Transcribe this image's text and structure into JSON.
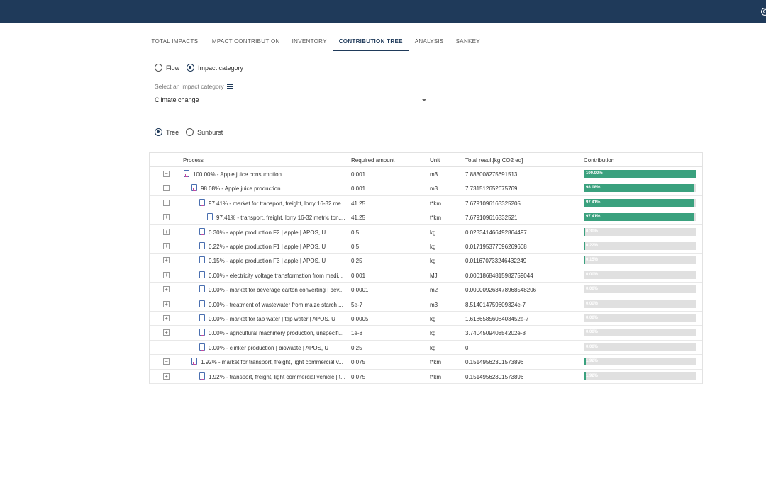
{
  "tabs": [
    "TOTAL IMPACTS",
    "IMPACT CONTRIBUTION",
    "INVENTORY",
    "CONTRIBUTION TREE",
    "ANALYSIS",
    "SANKEY"
  ],
  "active_tab": "CONTRIBUTION TREE",
  "mode": {
    "flow_label": "Flow",
    "impact_label": "Impact category",
    "selected": "Impact category"
  },
  "impact_select": {
    "label": "Select an impact category",
    "value": "Climate change"
  },
  "view": {
    "tree_label": "Tree",
    "sunburst_label": "Sunburst",
    "selected": "Tree"
  },
  "columns": [
    "Process",
    "Required amount",
    "Unit",
    "Total result[kg CO2 eq]",
    "Contribution"
  ],
  "rows": [
    {
      "toggle": "−",
      "level": 0,
      "process": "100.00% - Apple juice consumption",
      "amount": "0.001",
      "unit": "m3",
      "result": "7.883008275691513",
      "contrib": 100.0,
      "contrib_label": "100.00%"
    },
    {
      "toggle": "−",
      "level": 1,
      "process": "98.08% - Apple juice production",
      "amount": "0.001",
      "unit": "m3",
      "result": "7.731512652675769",
      "contrib": 98.08,
      "contrib_label": "98.08%"
    },
    {
      "toggle": "−",
      "level": 2,
      "process": "97.41% - market for transport, freight, lorry 16-32 me...",
      "amount": "41.25",
      "unit": "t*km",
      "result": "7.6791096163325205",
      "contrib": 97.41,
      "contrib_label": "97.41%"
    },
    {
      "toggle": "+",
      "level": 3,
      "process": "97.41% - transport, freight, lorry 16-32 metric ton,...",
      "amount": "41.25",
      "unit": "t*km",
      "result": "7.679109616332521",
      "contrib": 97.41,
      "contrib_label": "97.41%"
    },
    {
      "toggle": "+",
      "level": 2,
      "process": "0.30% - apple production F2 | apple | APOS, U",
      "amount": "0.5",
      "unit": "kg",
      "result": "0.023341466492864497",
      "contrib": 0.3,
      "contrib_label": "0.30%"
    },
    {
      "toggle": "+",
      "level": 2,
      "process": "0.22% - apple production F1 | apple | APOS, U",
      "amount": "0.5",
      "unit": "kg",
      "result": "0.017195377096269608",
      "contrib": 0.22,
      "contrib_label": "0.22%"
    },
    {
      "toggle": "+",
      "level": 2,
      "process": "0.15% - apple production F3 | apple | APOS, U",
      "amount": "0.25",
      "unit": "kg",
      "result": "0.011670733246432249",
      "contrib": 0.15,
      "contrib_label": "0.15%"
    },
    {
      "toggle": "+",
      "level": 2,
      "process": "0.00% - electricity voltage transformation from medi...",
      "amount": "0.001",
      "unit": "MJ",
      "result": "0.00018684815982759044",
      "contrib": 0.0,
      "contrib_label": "0.00%"
    },
    {
      "toggle": "+",
      "level": 2,
      "process": "0.00% - market for beverage carton converting | bev...",
      "amount": "0.0001",
      "unit": "m2",
      "result": "0.000009263478968548206",
      "contrib": 0.0,
      "contrib_label": "0.00%"
    },
    {
      "toggle": "+",
      "level": 2,
      "process": "0.00% - treatment of wastewater from maize starch ...",
      "amount": "5e-7",
      "unit": "m3",
      "result": "8.514014759609324e-7",
      "contrib": 0.0,
      "contrib_label": "0.00%"
    },
    {
      "toggle": "+",
      "level": 2,
      "process": "0.00% - market for tap water | tap water | APOS, U",
      "amount": "0.0005",
      "unit": "kg",
      "result": "1.6186585608403452e-7",
      "contrib": 0.0,
      "contrib_label": "0.00%"
    },
    {
      "toggle": "+",
      "level": 2,
      "process": "0.00% - agricultural machinery production, unspecifi...",
      "amount": "1e-8",
      "unit": "kg",
      "result": "3.740450940854202e-8",
      "contrib": 0.0,
      "contrib_label": "0.00%"
    },
    {
      "toggle": "",
      "level": 2,
      "process": "0.00% - clinker production | biowaste | APOS, U",
      "amount": "0.25",
      "unit": "kg",
      "result": "0",
      "contrib": 0.0,
      "contrib_label": "0.00%"
    },
    {
      "toggle": "−",
      "level": 1,
      "process": "1.92% - market for transport, freight, light commercial v...",
      "amount": "0.075",
      "unit": "t*km",
      "result": "0.15149562301573896",
      "contrib": 1.92,
      "contrib_label": "1.92%"
    },
    {
      "toggle": "+",
      "level": 2,
      "process": "1.92% - transport, freight, light commercial vehicle | t...",
      "amount": "0.075",
      "unit": "t*km",
      "result": "0.15149562301573896",
      "contrib": 1.92,
      "contrib_label": "1.92%"
    }
  ],
  "colors": {
    "topbar": "#1f3a5a",
    "bar_fill": "#3aa17e",
    "bar_bg": "#e0e0e0"
  }
}
